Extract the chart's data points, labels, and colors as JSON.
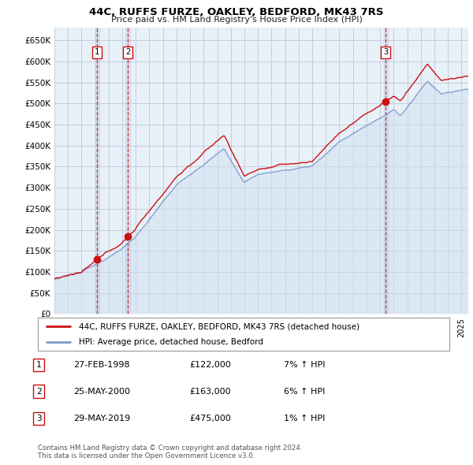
{
  "title": "44C, RUFFS FURZE, OAKLEY, BEDFORD, MK43 7RS",
  "subtitle": "Price paid vs. HM Land Registry's House Price Index (HPI)",
  "ylim": [
    0,
    680000
  ],
  "yticks": [
    0,
    50000,
    100000,
    150000,
    200000,
    250000,
    300000,
    350000,
    400000,
    450000,
    500000,
    550000,
    600000,
    650000
  ],
  "background_color": "#ffffff",
  "chart_bg_color": "#e8f0f8",
  "grid_color": "#c0c8d8",
  "hpi_color": "#7799cc",
  "price_color": "#cc1111",
  "hpi_fill_color": "#d0e0f0",
  "sale_markers": [
    {
      "date_num": 1998.15,
      "price": 122000,
      "label": "1"
    },
    {
      "date_num": 2000.4,
      "price": 163000,
      "label": "2"
    },
    {
      "date_num": 2019.41,
      "price": 475000,
      "label": "3"
    }
  ],
  "legend_entries": [
    {
      "label": "44C, RUFFS FURZE, OAKLEY, BEDFORD, MK43 7RS (detached house)",
      "color": "#cc1111"
    },
    {
      "label": "HPI: Average price, detached house, Bedford",
      "color": "#7799cc"
    }
  ],
  "table_rows": [
    {
      "num": "1",
      "date": "27-FEB-1998",
      "price": "£122,000",
      "hpi": "7% ↑ HPI"
    },
    {
      "num": "2",
      "date": "25-MAY-2000",
      "price": "£163,000",
      "hpi": "6% ↑ HPI"
    },
    {
      "num": "3",
      "date": "29-MAY-2019",
      "price": "£475,000",
      "hpi": "1% ↑ HPI"
    }
  ],
  "footer": "Contains HM Land Registry data © Crown copyright and database right 2024.\nThis data is licensed under the Open Government Licence v3.0.",
  "xmin": 1995.0,
  "xmax": 2025.5
}
